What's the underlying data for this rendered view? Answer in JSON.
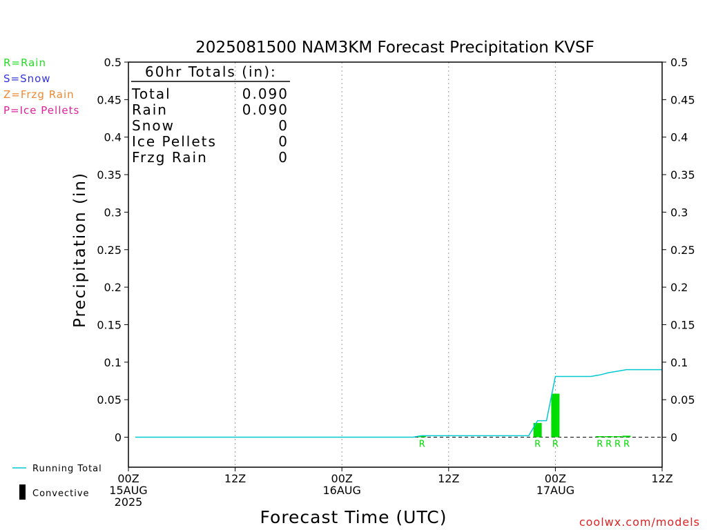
{
  "chart_data": {
    "type": "bar",
    "title": "2025081500 NAM3KM Forecast Precipitation KVSF",
    "xlabel": "Forecast Time (UTC)",
    "ylabel": "Precipitation (in)",
    "ylim": [
      -0.04,
      0.5
    ],
    "xlim_hours": [
      0,
      60
    ],
    "grid": "vertical-dotted",
    "y_ticks": [
      "0",
      "0.05",
      "0.1",
      "0.15",
      "0.2",
      "0.25",
      "0.3",
      "0.35",
      "0.4",
      "0.45",
      "0.5"
    ],
    "y_tick_values": [
      0,
      0.05,
      0.1,
      0.15,
      0.2,
      0.25,
      0.3,
      0.35,
      0.4,
      0.45,
      0.5
    ],
    "x_ticks": [
      {
        "hour": 0,
        "line1": "00Z",
        "line2": "15AUG",
        "line3": "2025"
      },
      {
        "hour": 12,
        "line1": "12Z",
        "line2": "",
        "line3": ""
      },
      {
        "hour": 24,
        "line1": "00Z",
        "line2": "16AUG",
        "line3": ""
      },
      {
        "hour": 36,
        "line1": "12Z",
        "line2": "",
        "line3": ""
      },
      {
        "hour": 48,
        "line1": "00Z",
        "line2": "17AUG",
        "line3": ""
      },
      {
        "hour": 60,
        "line1": "12Z",
        "line2": "",
        "line3": ""
      }
    ],
    "legend_types": [
      {
        "label": "R=Rain",
        "color": "#22dd22"
      },
      {
        "label": "S=Snow",
        "color": "#3333dd"
      },
      {
        "label": "Z=Frzg Rain",
        "color": "#ee8833"
      },
      {
        "label": "P=Ice Pellets",
        "color": "#dd2299"
      }
    ],
    "legend_series": [
      {
        "label": "Running Total",
        "color": "#00c8d0",
        "kind": "line"
      },
      {
        "label": "Convective",
        "color": "#000000",
        "kind": "box"
      }
    ],
    "totals": {
      "header": "60hr Totals (in):",
      "rows": [
        {
          "label": "Total",
          "value": "0.090"
        },
        {
          "label": "Rain",
          "value": "0.090"
        },
        {
          "label": "Snow",
          "value": "0"
        },
        {
          "label": "Ice Pellets",
          "value": "0"
        },
        {
          "label": "Frzg Rain",
          "value": "0"
        }
      ]
    },
    "bars": [
      {
        "hour": 33,
        "value": 0.002,
        "type": "R"
      },
      {
        "hour": 46,
        "value": 0.019,
        "type": "R"
      },
      {
        "hour": 48,
        "value": 0.058,
        "type": "R"
      },
      {
        "hour": 53,
        "value": 0.001,
        "type": "R"
      },
      {
        "hour": 54,
        "value": 0.001,
        "type": "R"
      },
      {
        "hour": 55,
        "value": 0.001,
        "type": "R"
      },
      {
        "hour": 56,
        "value": 0.002,
        "type": "R"
      }
    ],
    "bar_color": "#00dd00",
    "running_total": [
      {
        "hour": 0,
        "value": 0
      },
      {
        "hour": 32,
        "value": 0
      },
      {
        "hour": 33,
        "value": 0.002
      },
      {
        "hour": 45,
        "value": 0.002
      },
      {
        "hour": 46,
        "value": 0.022
      },
      {
        "hour": 47,
        "value": 0.022
      },
      {
        "hour": 48,
        "value": 0.081
      },
      {
        "hour": 52,
        "value": 0.081
      },
      {
        "hour": 53,
        "value": 0.083
      },
      {
        "hour": 54,
        "value": 0.086
      },
      {
        "hour": 55,
        "value": 0.088
      },
      {
        "hour": 56,
        "value": 0.09
      },
      {
        "hour": 60,
        "value": 0.09
      }
    ],
    "running_total_color": "#00c8d0"
  },
  "footer": {
    "credit": "coolwx.com/models"
  }
}
